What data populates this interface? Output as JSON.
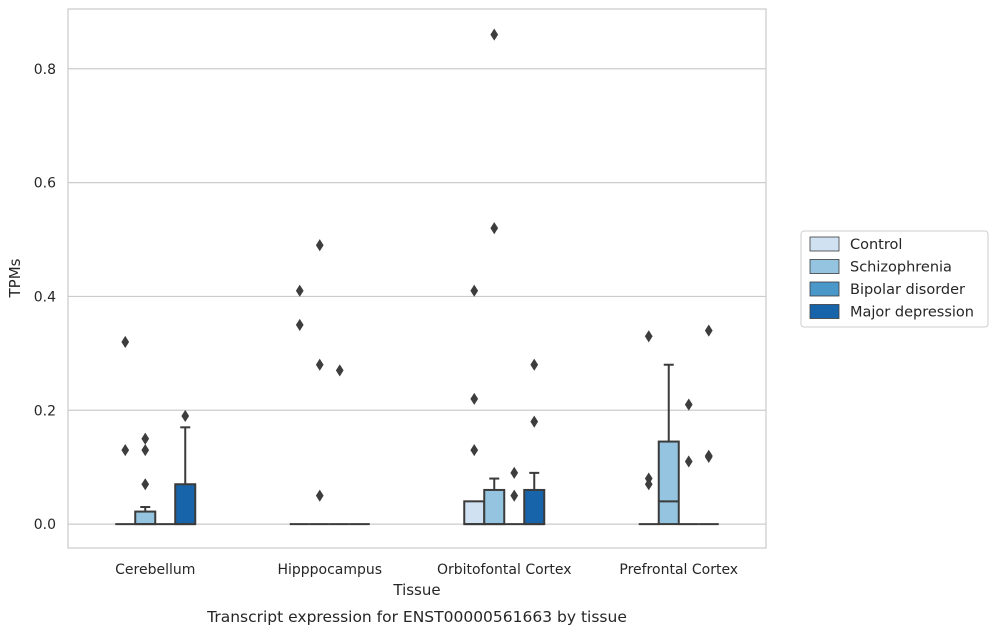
{
  "caption": "Transcript expression for ENST00000561663 by tissue",
  "chart_data": {
    "type": "box",
    "xlabel": "Tissue",
    "ylabel": "TPMs",
    "ylim": [
      -0.042,
      0.905
    ],
    "yticks": [
      0.0,
      0.2,
      0.4,
      0.6,
      0.8
    ],
    "ytick_labels": [
      "0.0",
      "0.2",
      "0.4",
      "0.6",
      "0.8"
    ],
    "grid": "horizontal",
    "legend_position": "right",
    "categories": [
      "Cerebellum",
      "Hipppocampus",
      "Orbitofontal Cortex",
      "Prefrontal Cortex"
    ],
    "series": [
      {
        "name": "Control",
        "color": "#d0e1f2",
        "boxes": [
          {
            "q1": 0,
            "median": 0,
            "q3": 0,
            "whisker_low": 0,
            "whisker_high": 0,
            "outliers": [
              0.32,
              0.13
            ]
          },
          {
            "q1": 0,
            "median": 0,
            "q3": 0,
            "whisker_low": 0,
            "whisker_high": 0,
            "outliers": [
              0.41,
              0.35
            ]
          },
          {
            "q1": 0,
            "median": 0,
            "q3": 0.04,
            "whisker_low": 0,
            "whisker_high": 0.04,
            "outliers": [
              0.41,
              0.22,
              0.13
            ]
          },
          {
            "q1": 0,
            "median": 0,
            "q3": 0,
            "whisker_low": 0,
            "whisker_high": 0,
            "outliers": [
              0.33,
              0.08,
              0.07
            ]
          }
        ]
      },
      {
        "name": "Schizophrenia",
        "color": "#94c4df",
        "boxes": [
          {
            "q1": 0,
            "median": 0,
            "q3": 0.022,
            "whisker_low": 0,
            "whisker_high": 0.03,
            "outliers": [
              0.15,
              0.13,
              0.07
            ]
          },
          {
            "q1": 0,
            "median": 0,
            "q3": 0,
            "whisker_low": 0,
            "whisker_high": 0,
            "outliers": [
              0.49,
              0.28,
              0.05
            ]
          },
          {
            "q1": 0,
            "median": 0,
            "q3": 0.06,
            "whisker_low": 0,
            "whisker_high": 0.08,
            "outliers": [
              0.86,
              0.52
            ]
          },
          {
            "q1": 0,
            "median": 0.04,
            "q3": 0.145,
            "whisker_low": 0,
            "whisker_high": 0.28,
            "outliers": []
          }
        ]
      },
      {
        "name": "Bipolar disorder",
        "color": "#4a98c9",
        "boxes": [
          {
            "q1": 0,
            "median": 0,
            "q3": 0,
            "whisker_low": 0,
            "whisker_high": 0,
            "outliers": []
          },
          {
            "q1": 0,
            "median": 0,
            "q3": 0,
            "whisker_low": 0,
            "whisker_high": 0,
            "outliers": [
              0.27
            ]
          },
          {
            "q1": 0,
            "median": 0,
            "q3": 0,
            "whisker_low": 0,
            "whisker_high": 0,
            "outliers": [
              0.09,
              0.05
            ]
          },
          {
            "q1": 0,
            "median": 0,
            "q3": 0,
            "whisker_low": 0,
            "whisker_high": 0,
            "outliers": [
              0.21,
              0.11
            ]
          }
        ]
      },
      {
        "name": "Major depression",
        "color": "#1764ab",
        "boxes": [
          {
            "q1": 0,
            "median": 0,
            "q3": 0.07,
            "whisker_low": 0,
            "whisker_high": 0.17,
            "outliers": [
              0.19
            ]
          },
          {
            "q1": 0,
            "median": 0,
            "q3": 0,
            "whisker_low": 0,
            "whisker_high": 0,
            "outliers": []
          },
          {
            "q1": 0,
            "median": 0,
            "q3": 0.06,
            "whisker_low": 0,
            "whisker_high": 0.09,
            "outliers": [
              0.28,
              0.18
            ]
          },
          {
            "q1": 0,
            "median": 0,
            "q3": 0,
            "whisker_low": 0,
            "whisker_high": 0,
            "outliers": [
              0.34,
              0.12,
              0.118
            ]
          }
        ]
      }
    ]
  }
}
